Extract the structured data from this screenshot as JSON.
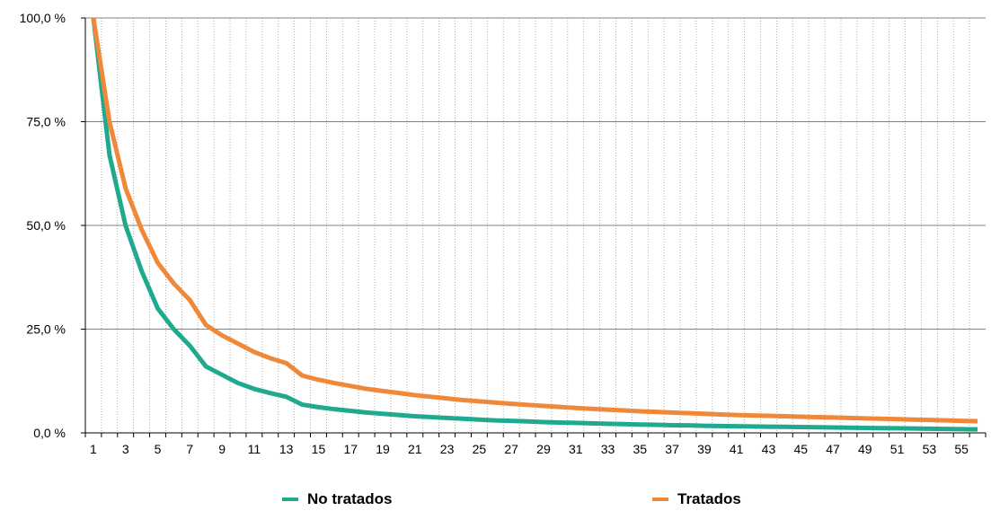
{
  "chart_data": {
    "type": "line",
    "x": [
      1,
      2,
      3,
      4,
      5,
      6,
      7,
      8,
      9,
      10,
      11,
      12,
      13,
      14,
      15,
      16,
      17,
      18,
      19,
      20,
      21,
      22,
      23,
      24,
      25,
      26,
      27,
      28,
      29,
      30,
      31,
      32,
      33,
      34,
      35,
      36,
      37,
      38,
      39,
      40,
      41,
      42,
      43,
      44,
      45,
      46,
      47,
      48,
      49,
      50,
      51,
      52,
      53,
      54,
      55,
      56
    ],
    "x_tick_labels": [
      "1",
      "3",
      "5",
      "7",
      "9",
      "11",
      "13",
      "15",
      "17",
      "19",
      "21",
      "23",
      "25",
      "27",
      "29",
      "31",
      "33",
      "35",
      "37",
      "39",
      "41",
      "43",
      "45",
      "47",
      "49",
      "51",
      "53",
      "55"
    ],
    "y_tick_labels": [
      "0,0 %",
      "25,0 %",
      "50,0 %",
      "75,0 %",
      "100,0 %"
    ],
    "y_ticks": [
      0,
      25,
      50,
      75,
      100
    ],
    "ylim": [
      0,
      100
    ],
    "grid": true,
    "legend_position": "bottom",
    "series": [
      {
        "name": "No tratados",
        "color": "#1fa98e",
        "values": [
          100,
          67,
          50,
          39,
          30,
          25,
          21,
          16,
          14,
          12,
          10.6,
          9.6,
          8.7,
          6.8,
          6.2,
          5.7,
          5.3,
          4.9,
          4.6,
          4.3,
          4.0,
          3.8,
          3.6,
          3.4,
          3.2,
          3.0,
          2.9,
          2.75,
          2.6,
          2.5,
          2.4,
          2.3,
          2.2,
          2.1,
          2.0,
          1.95,
          1.85,
          1.8,
          1.7,
          1.65,
          1.6,
          1.55,
          1.5,
          1.45,
          1.4,
          1.35,
          1.3,
          1.25,
          1.2,
          1.15,
          1.1,
          1.05,
          1.0,
          0.95,
          0.9,
          0.85
        ]
      },
      {
        "name": "Tratados",
        "color": "#f0883a",
        "values": [
          100,
          75,
          59,
          49,
          41,
          36,
          32,
          26,
          23.5,
          21.5,
          19.5,
          18,
          16.8,
          13.8,
          12.8,
          12,
          11.3,
          10.6,
          10.1,
          9.6,
          9.1,
          8.7,
          8.3,
          7.9,
          7.6,
          7.3,
          7.0,
          6.75,
          6.5,
          6.25,
          6.0,
          5.8,
          5.6,
          5.4,
          5.2,
          5.05,
          4.9,
          4.75,
          4.6,
          4.45,
          4.3,
          4.2,
          4.1,
          4.0,
          3.9,
          3.8,
          3.7,
          3.6,
          3.5,
          3.4,
          3.3,
          3.2,
          3.1,
          3.0,
          2.9,
          2.8
        ]
      }
    ]
  }
}
